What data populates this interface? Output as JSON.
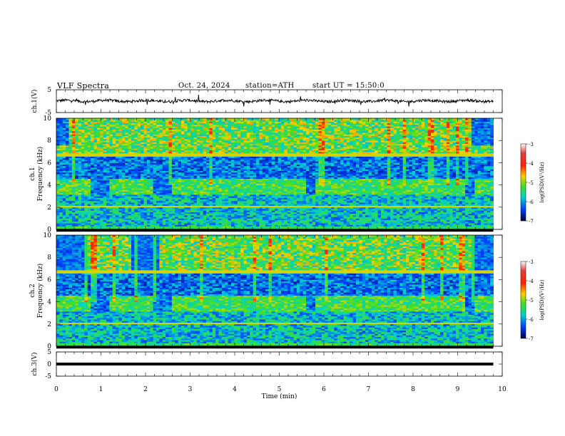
{
  "header": {
    "title": "VLF Spectra",
    "date": "Oct. 24, 2024",
    "station": "station=ATH",
    "start": "start UT =  15:50:0"
  },
  "chart_data": [
    {
      "type": "line",
      "panel": "ch1-waveform",
      "ylabel": "ch.1(V)",
      "ylim": [
        -5,
        5
      ],
      "yticks": [
        "5",
        "-5"
      ],
      "xlim": [
        0,
        9.8
      ],
      "baseline": 0.1,
      "noise_amplitude": 0.6
    },
    {
      "type": "heatmap",
      "panel": "ch1-spectrogram",
      "ylabel": "ch.1\nFrequency (kHz)",
      "ylim": [
        0,
        10
      ],
      "yticks": [
        "0",
        "2",
        "4",
        "6",
        "8",
        "10"
      ],
      "xlim": [
        0,
        9.8
      ],
      "colorbar": {
        "label": "log(PSD)(V²/Hz)",
        "range": [
          -7,
          -3
        ],
        "ticks": [
          "-3",
          "-4",
          "-5",
          "-6",
          "-7"
        ]
      },
      "gaps_min": [
        [
          0.8,
          1.2
        ],
        [
          2.2,
          2.6
        ],
        [
          5.6,
          5.8
        ],
        [
          9.2,
          9.4
        ]
      ]
    },
    {
      "type": "heatmap",
      "panel": "ch2-spectrogram",
      "ylabel": "ch.2\nFrequency (kHz)",
      "ylim": [
        0,
        10
      ],
      "yticks": [
        "0",
        "2",
        "4",
        "6",
        "8",
        "10"
      ],
      "xlim": [
        0,
        9.8
      ],
      "colorbar": {
        "label": "log(PSD)(V²/Hz)",
        "range": [
          -7,
          -3
        ],
        "ticks": [
          "-3",
          "-4",
          "-5",
          "-6",
          "-7"
        ]
      },
      "gaps_min": [
        [
          0.8,
          1.2
        ],
        [
          2.2,
          2.6
        ],
        [
          5.6,
          5.8
        ],
        [
          9.2,
          9.4
        ]
      ]
    },
    {
      "type": "line",
      "panel": "ch3-waveform",
      "ylabel": "ch.3(V)",
      "ylim": [
        -5,
        5
      ],
      "yticks": [
        "5",
        "0",
        "-5"
      ],
      "xlim": [
        0,
        9.8
      ],
      "baseline": 0
    }
  ],
  "xaxis": {
    "label": "Time (min)",
    "range": [
      0,
      10
    ],
    "ticks": [
      "0",
      "1",
      "2",
      "3",
      "4",
      "5",
      "6",
      "7",
      "8",
      "9",
      "10"
    ]
  }
}
